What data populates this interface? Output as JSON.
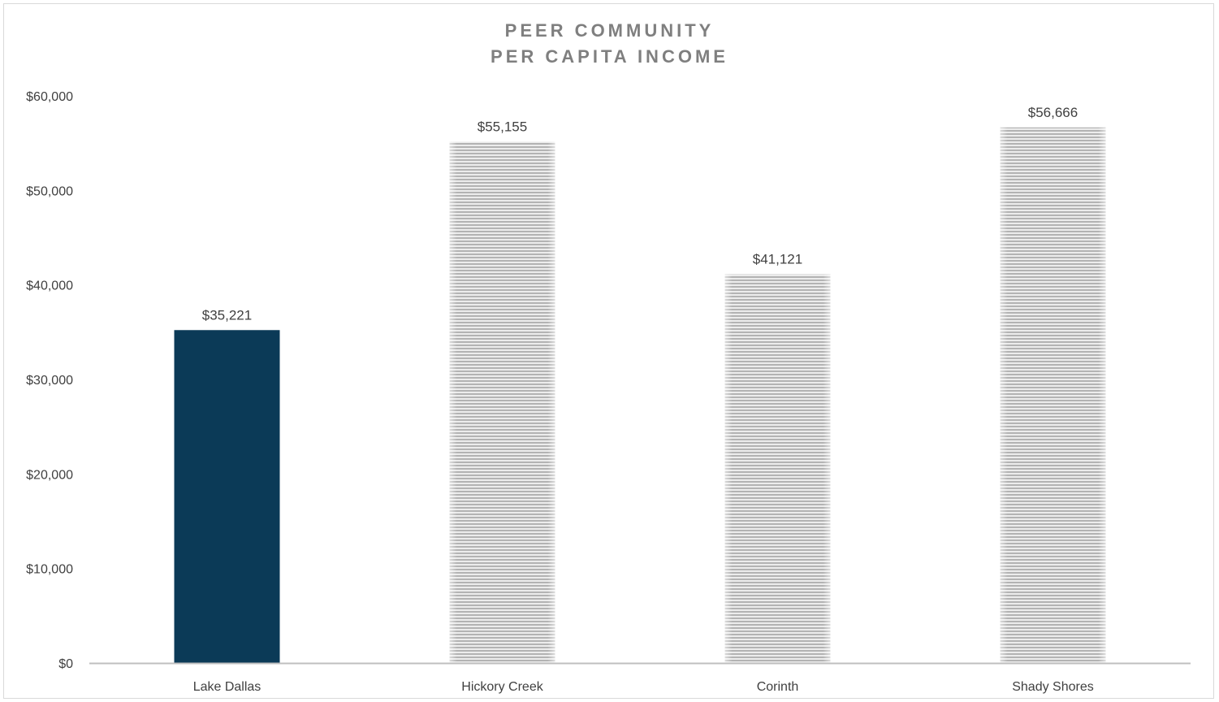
{
  "chart_data": {
    "type": "bar",
    "title_lines": [
      "PEER COMMUNITY",
      "PER CAPITA INCOME"
    ],
    "categories": [
      "Lake Dallas",
      "Hickory Creek",
      "Corinth",
      "Shady Shores"
    ],
    "values": [
      35221,
      55155,
      41121,
      56666
    ],
    "data_labels": [
      "$35,221",
      "$55,155",
      "$41,121",
      "$56,666"
    ],
    "ylim": [
      0,
      60000
    ],
    "yticks": [
      0,
      10000,
      20000,
      30000,
      40000,
      50000,
      60000
    ],
    "ytick_labels": [
      "$0",
      "$10,000",
      "$20,000",
      "$30,000",
      "$40,000",
      "$50,000",
      "$60,000"
    ],
    "grid": false,
    "legend": "none",
    "colors": {
      "highlight": "#0b3a57",
      "peer": "#bfbfbf",
      "peer_stripe": "#e6e6e6",
      "axis": "#bfbfbf"
    },
    "bar_styles": [
      "highlight",
      "peer",
      "peer",
      "peer"
    ]
  }
}
